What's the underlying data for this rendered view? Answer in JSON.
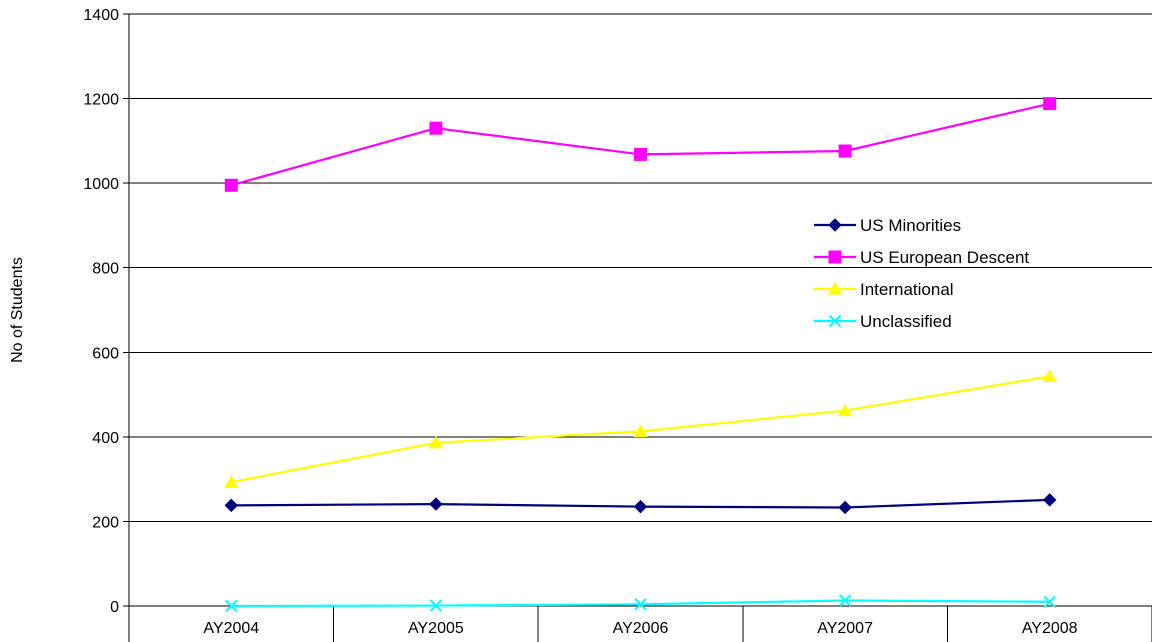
{
  "chart_data": {
    "type": "line",
    "title": "",
    "xlabel": "",
    "ylabel": "No of Students",
    "categories": [
      "AY2004",
      "AY2005",
      "AY2006",
      "AY2007",
      "AY2008"
    ],
    "ylim": [
      0,
      1400
    ],
    "yticks": [
      0,
      200,
      400,
      600,
      800,
      1000,
      1200,
      1400
    ],
    "grid": true,
    "legend_position": "right-middle",
    "series": [
      {
        "name": "US Minorities",
        "color": "#00007f",
        "marker": "diamond",
        "values": [
          238,
          241,
          235,
          233,
          251
        ]
      },
      {
        "name": "US European Descent",
        "color": "#ff00ff",
        "marker": "square",
        "values": [
          995,
          1130,
          1068,
          1076,
          1188
        ]
      },
      {
        "name": "International",
        "color": "#ffff00",
        "marker": "triangle",
        "values": [
          293,
          386,
          413,
          462,
          543
        ]
      },
      {
        "name": "Unclassified",
        "color": "#00ffff",
        "marker": "x",
        "values": [
          0,
          1,
          4,
          13,
          10
        ]
      }
    ]
  }
}
